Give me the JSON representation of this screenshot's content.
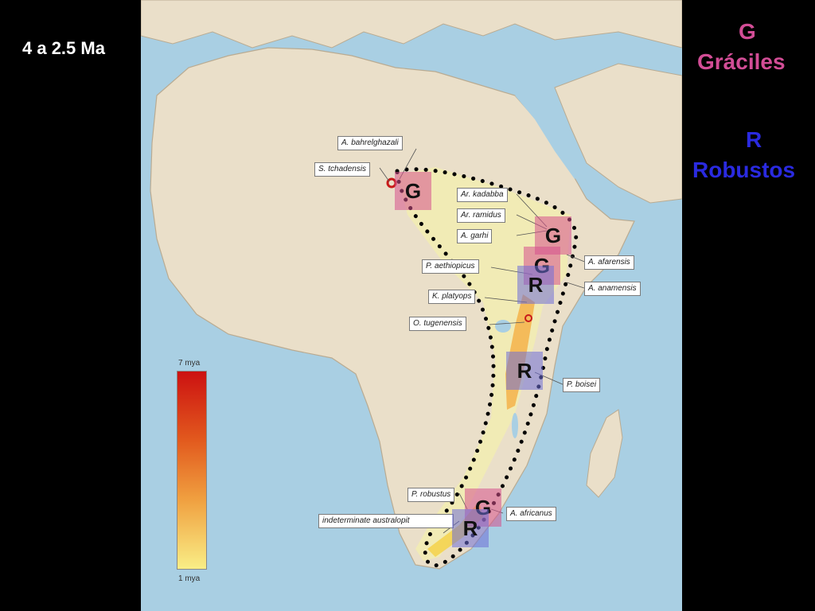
{
  "age_range": "4 a 2.5 Ma",
  "legend": {
    "g_letter": "G",
    "g_word": "Gráciles",
    "r_letter": "R",
    "r_word": "Robustos"
  },
  "species_labels": [
    "A. bahrelghazali",
    "S. tchadensis",
    "Ar. kadabba",
    "Ar. ramidus",
    "A. garhi",
    "A. afarensis",
    "P. aethiopicus",
    "A. anamensis",
    "K. platyops",
    "O. tugenensis",
    "P. boisei",
    "P. robustus",
    "A. africanus",
    "indeterminate australopit"
  ],
  "markers": {
    "g": "G",
    "r": "R"
  },
  "scale": {
    "top": "7 mya",
    "bottom": "1 mya"
  },
  "colors": {
    "gracile": "#d24d96",
    "robust": "#2a2ae0",
    "land": "#eadfc9",
    "sea": "#a9cfe3",
    "range_area": "#f3eeb0"
  }
}
